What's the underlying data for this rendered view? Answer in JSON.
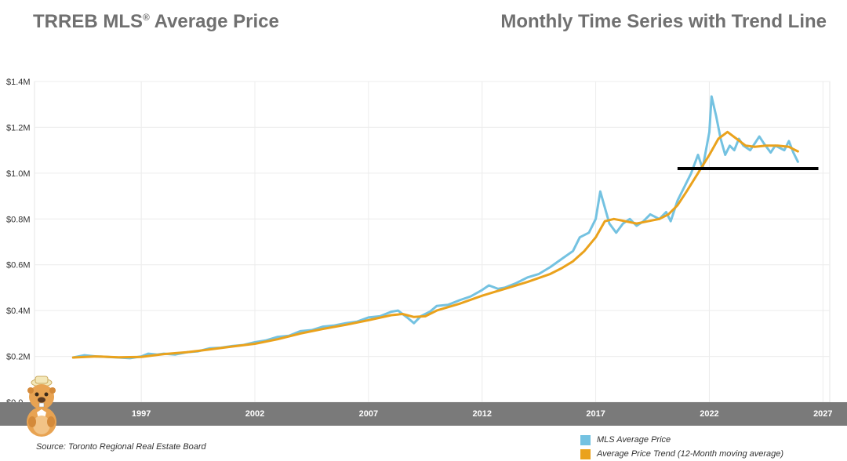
{
  "header": {
    "title_main": "TRREB MLS",
    "title_reg": "®",
    "title_rest": " Average Price",
    "subtitle": "Monthly Time Series with Trend Line"
  },
  "source": "Source: Toronto Regional Real Estate Board",
  "colors": {
    "mls": "#74c2e1",
    "trend": "#eaa21c",
    "support_line": "#000000",
    "axis_band": "#7a7a7a",
    "title": "#707070"
  },
  "mascot": {
    "icon": "beaver-mascot-icon"
  },
  "legend": [
    {
      "label": "MLS Average Price",
      "color": "#74c2e1"
    },
    {
      "label": "Average Price Trend (12-Month moving average)",
      "color": "#eaa21c"
    }
  ],
  "chart_data": {
    "type": "line",
    "xlim": [
      1992.3,
      2027.3
    ],
    "ylim": [
      0,
      1400000
    ],
    "x_ticks": [
      1997,
      2002,
      2007,
      2012,
      2017,
      2022,
      2027
    ],
    "y_ticks": [
      {
        "value": 0,
        "label": "$0.0"
      },
      {
        "value": 200000,
        "label": "$0.2M"
      },
      {
        "value": 400000,
        "label": "$0.4M"
      },
      {
        "value": 600000,
        "label": "$0.6M"
      },
      {
        "value": 800000,
        "label": "$0.8M"
      },
      {
        "value": 1000000,
        "label": "$1.0M"
      },
      {
        "value": 1200000,
        "label": "$1.2M"
      },
      {
        "value": 1400000,
        "label": "$1.4M"
      }
    ],
    "grid": true,
    "series": [
      {
        "name": "MLS Average Price",
        "color": "#74c2e1",
        "points": [
          [
            1994.0,
            195000
          ],
          [
            1994.5,
            205000
          ],
          [
            1995.0,
            200000
          ],
          [
            1995.5,
            198000
          ],
          [
            1996.0,
            195000
          ],
          [
            1996.5,
            192000
          ],
          [
            1997.0,
            200000
          ],
          [
            1997.3,
            212000
          ],
          [
            1997.7,
            208000
          ],
          [
            1998.0,
            212000
          ],
          [
            1998.5,
            208000
          ],
          [
            1999.0,
            218000
          ],
          [
            1999.5,
            222000
          ],
          [
            2000.0,
            235000
          ],
          [
            2000.5,
            238000
          ],
          [
            2001.0,
            245000
          ],
          [
            2001.5,
            250000
          ],
          [
            2002.0,
            262000
          ],
          [
            2002.5,
            270000
          ],
          [
            2003.0,
            285000
          ],
          [
            2003.5,
            290000
          ],
          [
            2004.0,
            310000
          ],
          [
            2004.5,
            315000
          ],
          [
            2005.0,
            330000
          ],
          [
            2005.5,
            335000
          ],
          [
            2006.0,
            345000
          ],
          [
            2006.5,
            352000
          ],
          [
            2007.0,
            370000
          ],
          [
            2007.5,
            375000
          ],
          [
            2008.0,
            395000
          ],
          [
            2008.3,
            400000
          ],
          [
            2008.7,
            370000
          ],
          [
            2009.0,
            345000
          ],
          [
            2009.3,
            375000
          ],
          [
            2009.7,
            395000
          ],
          [
            2010.0,
            420000
          ],
          [
            2010.5,
            425000
          ],
          [
            2011.0,
            445000
          ],
          [
            2011.5,
            462000
          ],
          [
            2012.0,
            490000
          ],
          [
            2012.3,
            510000
          ],
          [
            2012.7,
            495000
          ],
          [
            2013.0,
            500000
          ],
          [
            2013.5,
            520000
          ],
          [
            2014.0,
            545000
          ],
          [
            2014.5,
            560000
          ],
          [
            2015.0,
            590000
          ],
          [
            2015.5,
            625000
          ],
          [
            2016.0,
            660000
          ],
          [
            2016.3,
            720000
          ],
          [
            2016.7,
            740000
          ],
          [
            2017.0,
            800000
          ],
          [
            2017.2,
            920000
          ],
          [
            2017.4,
            850000
          ],
          [
            2017.6,
            780000
          ],
          [
            2017.9,
            740000
          ],
          [
            2018.2,
            780000
          ],
          [
            2018.5,
            800000
          ],
          [
            2018.8,
            770000
          ],
          [
            2019.1,
            790000
          ],
          [
            2019.4,
            820000
          ],
          [
            2019.8,
            800000
          ],
          [
            2020.1,
            830000
          ],
          [
            2020.3,
            790000
          ],
          [
            2020.6,
            880000
          ],
          [
            2020.9,
            940000
          ],
          [
            2021.2,
            1000000
          ],
          [
            2021.5,
            1080000
          ],
          [
            2021.7,
            1020000
          ],
          [
            2022.0,
            1180000
          ],
          [
            2022.1,
            1335000
          ],
          [
            2022.3,
            1250000
          ],
          [
            2022.5,
            1150000
          ],
          [
            2022.7,
            1080000
          ],
          [
            2022.9,
            1120000
          ],
          [
            2023.1,
            1100000
          ],
          [
            2023.3,
            1150000
          ],
          [
            2023.5,
            1120000
          ],
          [
            2023.8,
            1100000
          ],
          [
            2024.0,
            1130000
          ],
          [
            2024.2,
            1160000
          ],
          [
            2024.4,
            1130000
          ],
          [
            2024.7,
            1090000
          ],
          [
            2024.9,
            1120000
          ],
          [
            2025.1,
            1110000
          ],
          [
            2025.3,
            1100000
          ],
          [
            2025.5,
            1140000
          ],
          [
            2025.7,
            1090000
          ],
          [
            2025.9,
            1050000
          ]
        ]
      },
      {
        "name": "Average Price Trend (12-Month moving average)",
        "color": "#eaa21c",
        "points": [
          [
            1994.0,
            195000
          ],
          [
            1995.0,
            200000
          ],
          [
            1996.0,
            196000
          ],
          [
            1997.0,
            198000
          ],
          [
            1998.0,
            210000
          ],
          [
            1999.0,
            218000
          ],
          [
            2000.0,
            230000
          ],
          [
            2001.0,
            243000
          ],
          [
            2002.0,
            255000
          ],
          [
            2003.0,
            275000
          ],
          [
            2004.0,
            300000
          ],
          [
            2005.0,
            320000
          ],
          [
            2006.0,
            338000
          ],
          [
            2007.0,
            358000
          ],
          [
            2008.0,
            380000
          ],
          [
            2008.5,
            385000
          ],
          [
            2009.0,
            372000
          ],
          [
            2009.5,
            375000
          ],
          [
            2010.0,
            400000
          ],
          [
            2011.0,
            430000
          ],
          [
            2012.0,
            465000
          ],
          [
            2013.0,
            495000
          ],
          [
            2014.0,
            525000
          ],
          [
            2015.0,
            560000
          ],
          [
            2015.5,
            585000
          ],
          [
            2016.0,
            615000
          ],
          [
            2016.5,
            660000
          ],
          [
            2017.0,
            720000
          ],
          [
            2017.4,
            790000
          ],
          [
            2017.8,
            800000
          ],
          [
            2018.3,
            790000
          ],
          [
            2018.8,
            780000
          ],
          [
            2019.3,
            790000
          ],
          [
            2019.8,
            800000
          ],
          [
            2020.2,
            820000
          ],
          [
            2020.6,
            860000
          ],
          [
            2021.0,
            920000
          ],
          [
            2021.5,
            1000000
          ],
          [
            2022.0,
            1080000
          ],
          [
            2022.4,
            1150000
          ],
          [
            2022.8,
            1180000
          ],
          [
            2023.2,
            1150000
          ],
          [
            2023.6,
            1120000
          ],
          [
            2024.0,
            1115000
          ],
          [
            2024.5,
            1120000
          ],
          [
            2025.0,
            1120000
          ],
          [
            2025.5,
            1115000
          ],
          [
            2025.9,
            1095000
          ]
        ]
      }
    ],
    "support_line": {
      "y": 1020000,
      "x_start": 2020.6,
      "x_end": 2026.8
    }
  }
}
